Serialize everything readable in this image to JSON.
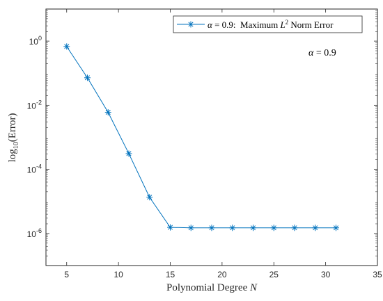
{
  "chart_data": {
    "type": "line",
    "xlabel": "Polynomial Degree N",
    "xlabel_main": "Polynomial Degree ",
    "xlabel_var": "N",
    "ylabel": "log10(Error)",
    "ylabel_pre": "log",
    "ylabel_sub": "10",
    "ylabel_post": "(Error)",
    "xlim": [
      3,
      35
    ],
    "ylim_log10": [
      -7,
      1
    ],
    "yscale": "log",
    "grid": false,
    "legend_position": "top-right",
    "xticks": [
      5,
      10,
      15,
      20,
      25,
      30,
      35
    ],
    "xtick_labels": [
      "5",
      "10",
      "15",
      "20",
      "25",
      "30",
      "35"
    ],
    "yticks_log10": [
      0,
      -2,
      -4,
      -6
    ],
    "ytick_labels": [
      {
        "base": "10",
        "exp": "0"
      },
      {
        "base": "10",
        "exp": "-2"
      },
      {
        "base": "10",
        "exp": "-4"
      },
      {
        "base": "10",
        "exp": "-6"
      }
    ],
    "series": [
      {
        "name": "α = 0.9: Maximum L2 Norm Error",
        "legend_parts": {
          "alpha": "α",
          "eq_value": " = 0.9:  Maximum ",
          "norm_var": "L",
          "norm_exp": "2",
          "tail": " Norm Error"
        },
        "color": "#0072BD",
        "marker": "asterisk",
        "x": [
          5,
          7,
          9,
          11,
          13,
          15,
          17,
          19,
          21,
          23,
          25,
          27,
          29,
          31
        ],
        "y": [
          0.68,
          0.072,
          0.006,
          0.00031,
          1.35e-05,
          1.55e-06,
          1.5e-06,
          1.5e-06,
          1.5e-06,
          1.5e-06,
          1.5e-06,
          1.5e-06,
          1.5e-06,
          1.5e-06
        ]
      }
    ],
    "annotations": [
      {
        "alpha": "α",
        "text": " = 0.9"
      }
    ]
  }
}
